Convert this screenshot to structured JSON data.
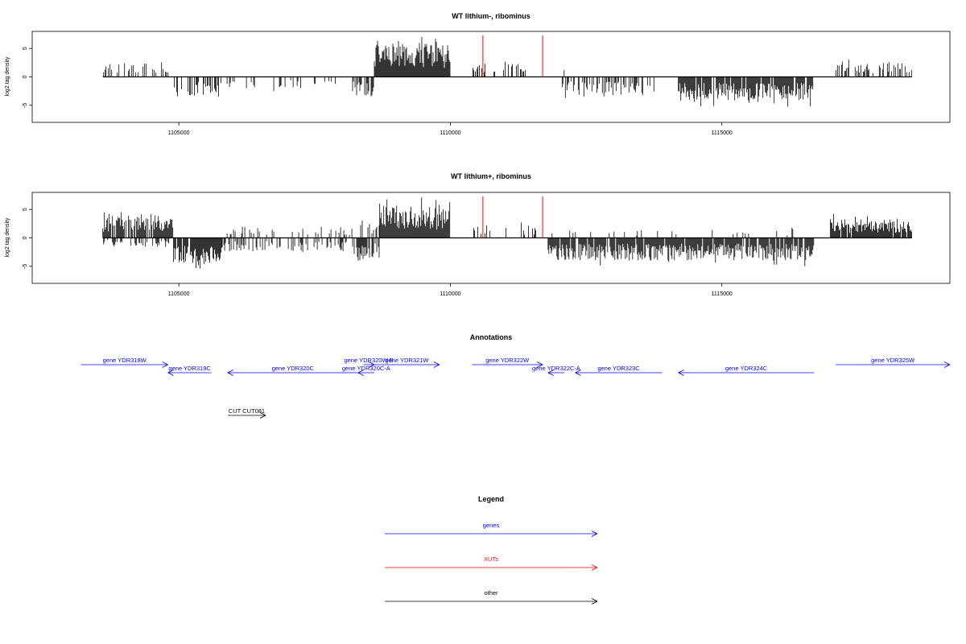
{
  "chart_data": [
    {
      "type": "bar",
      "title": "WT lithium-, ribominus",
      "ylabel": "log2 tag density",
      "xlim": [
        1102300,
        1119200
      ],
      "ylim": [
        -8,
        8
      ],
      "xticks": [
        "1105000",
        "1110000",
        "1115000"
      ],
      "xtick_values": [
        1105000,
        1110000,
        1115000
      ],
      "yticks": [
        "-5",
        "0",
        "5"
      ],
      "ytick_values": [
        -5,
        0,
        5
      ],
      "baseline_range": [
        1103600,
        1118500
      ],
      "highlight_color": "#ff0000",
      "highlights": [
        1110600,
        1111700
      ],
      "highlight_height": 7.3,
      "segments": [
        {
          "start": 1103600,
          "end": 1104900,
          "dir": 1,
          "amp": 2.6,
          "density": 0.35,
          "seed": 11
        },
        {
          "start": 1104900,
          "end": 1105800,
          "dir": -1,
          "amp": 3.8,
          "density": 0.55,
          "seed": 12
        },
        {
          "start": 1105800,
          "end": 1107200,
          "dir": -1,
          "amp": 2.2,
          "density": 0.12,
          "seed": 13
        },
        {
          "start": 1107200,
          "end": 1108200,
          "dir": -1,
          "amp": 2.0,
          "density": 0.08,
          "seed": 14
        },
        {
          "start": 1108200,
          "end": 1108600,
          "dir": -1,
          "amp": 3.3,
          "density": 0.7,
          "seed": 15
        },
        {
          "start": 1108600,
          "end": 1110000,
          "dir": 1,
          "amp": 6.0,
          "density": 1.0,
          "seed": 16
        },
        {
          "start": 1110400,
          "end": 1111400,
          "dir": 1,
          "amp": 2.3,
          "density": 0.25,
          "seed": 17
        },
        {
          "start": 1111800,
          "end": 1112200,
          "dir": 1,
          "amp": 1.5,
          "density": 0.15,
          "seed": 18
        },
        {
          "start": 1112000,
          "end": 1113800,
          "dir": -1,
          "amp": 3.2,
          "density": 0.45,
          "seed": 19
        },
        {
          "start": 1114200,
          "end": 1116700,
          "dir": -1,
          "amp": 4.2,
          "density": 0.9,
          "seed": 20
        },
        {
          "start": 1117100,
          "end": 1118500,
          "dir": 1,
          "amp": 2.7,
          "density": 0.45,
          "seed": 21
        }
      ]
    },
    {
      "type": "bar",
      "title": "WT lithium+, ribominus",
      "ylabel": "log2 tag density",
      "xlim": [
        1102300,
        1119200
      ],
      "ylim": [
        -8,
        8
      ],
      "xticks": [
        "1105000",
        "1110000",
        "1115000"
      ],
      "xtick_values": [
        1105000,
        1110000,
        1115000
      ],
      "yticks": [
        "-5",
        "0",
        "5"
      ],
      "ytick_values": [
        -5,
        0,
        5
      ],
      "baseline_range": [
        1103600,
        1118500
      ],
      "highlight_color": "#ff0000",
      "highlights": [
        1110600,
        1111700
      ],
      "highlight_height": 7.3,
      "segments": [
        {
          "start": 1103600,
          "end": 1104900,
          "dir": 1,
          "amp": 4.0,
          "density": 0.85,
          "seed": 31
        },
        {
          "start": 1103600,
          "end": 1104900,
          "dir": -1,
          "amp": 1.6,
          "density": 0.3,
          "seed": 32
        },
        {
          "start": 1104900,
          "end": 1105800,
          "dir": -1,
          "amp": 5.0,
          "density": 0.95,
          "seed": 33
        },
        {
          "start": 1105800,
          "end": 1108200,
          "dir": -1,
          "amp": 2.4,
          "density": 0.35,
          "seed": 34
        },
        {
          "start": 1105800,
          "end": 1108200,
          "dir": 1,
          "amp": 2.0,
          "density": 0.2,
          "seed": 35
        },
        {
          "start": 1108200,
          "end": 1108700,
          "dir": -1,
          "amp": 4.0,
          "density": 0.85,
          "seed": 36
        },
        {
          "start": 1108200,
          "end": 1108700,
          "dir": 1,
          "amp": 2.5,
          "density": 0.4,
          "seed": 37
        },
        {
          "start": 1108700,
          "end": 1110000,
          "dir": 1,
          "amp": 5.8,
          "density": 1.0,
          "seed": 38
        },
        {
          "start": 1110400,
          "end": 1111600,
          "dir": 1,
          "amp": 2.2,
          "density": 0.25,
          "seed": 39
        },
        {
          "start": 1111800,
          "end": 1116700,
          "dir": -1,
          "amp": 4.0,
          "density": 0.9,
          "seed": 40
        },
        {
          "start": 1111800,
          "end": 1116700,
          "dir": 1,
          "amp": 1.6,
          "density": 0.12,
          "seed": 41
        },
        {
          "start": 1117000,
          "end": 1118500,
          "dir": 1,
          "amp": 3.4,
          "density": 0.95,
          "seed": 42
        }
      ]
    }
  ],
  "annotations": {
    "title": "Annotations",
    "genes": [
      {
        "label": "gene YDR318W",
        "start": 1103200,
        "end": 1104800,
        "dir": 1,
        "row": 0
      },
      {
        "label": "gene YDR319C",
        "start": 1104800,
        "end": 1105600,
        "dir": -1,
        "row": 1
      },
      {
        "label": "gene YDR320C",
        "start": 1105900,
        "end": 1108300,
        "dir": -1,
        "row": 1
      },
      {
        "label": "gene YDR320W-B",
        "start": 1108400,
        "end": 1108600,
        "dir": 1,
        "row": 0
      },
      {
        "label": "gene YDR320C-A",
        "start": 1108300,
        "end": 1108600,
        "dir": -1,
        "row": 1
      },
      {
        "label": "gene YDR321W",
        "start": 1108600,
        "end": 1109800,
        "dir": 1,
        "row": 0
      },
      {
        "label": "gene YDR322W",
        "start": 1110400,
        "end": 1111700,
        "dir": 1,
        "row": 0
      },
      {
        "label": "gene YDR322C-A",
        "start": 1111800,
        "end": 1112100,
        "dir": -1,
        "row": 1
      },
      {
        "label": "gene YDR323C",
        "start": 1112300,
        "end": 1113900,
        "dir": -1,
        "row": 1
      },
      {
        "label": "gene YDR324C",
        "start": 1114200,
        "end": 1116700,
        "dir": -1,
        "row": 1
      },
      {
        "label": "gene YDR325W",
        "start": 1117100,
        "end": 1119200,
        "dir": 1,
        "row": 0
      }
    ],
    "other": [
      {
        "label": "CUT CUT081",
        "start": 1105900,
        "end": 1106600,
        "dir": 1
      }
    ]
  },
  "legend": {
    "title": "Legend",
    "items": [
      {
        "label": "genes",
        "color": "#0000ff"
      },
      {
        "label": "XUTs",
        "color": "#ff0000"
      },
      {
        "label": "other",
        "color": "#000000"
      }
    ]
  },
  "colors": {
    "gene": "#0000ff",
    "xut": "#ff0000",
    "other": "#000000",
    "bars": "#000000"
  }
}
